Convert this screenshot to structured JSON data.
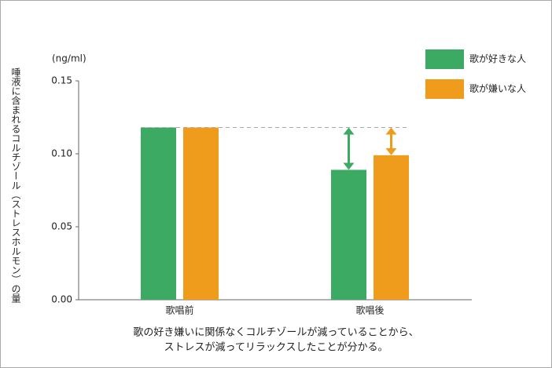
{
  "chart_data": {
    "type": "bar",
    "unit_label": "(ng/ml)",
    "y_label": "唾液に含まれるコルチゾール（ストレスホルモン）の量",
    "categories": [
      "歌唱前",
      "歌唱後"
    ],
    "series": [
      {
        "name": "歌が好きな人",
        "color": "#3daa64",
        "values": [
          0.118,
          0.089
        ]
      },
      {
        "name": "歌が嫌いな人",
        "color": "#ef9b1c",
        "values": [
          0.118,
          0.099
        ]
      }
    ],
    "ylim": [
      0,
      0.15
    ],
    "yticks": [
      {
        "value": 0,
        "label": "0.00"
      },
      {
        "value": 0.05,
        "label": "0.05"
      },
      {
        "value": 0.1,
        "label": "0.10"
      },
      {
        "value": 0.15,
        "label": "0.15"
      }
    ],
    "caption": [
      "歌の好き嫌いに関係なくコルチゾールが減っていることから、",
      "ストレスが減ってリラックスしたことが分かる。"
    ]
  }
}
